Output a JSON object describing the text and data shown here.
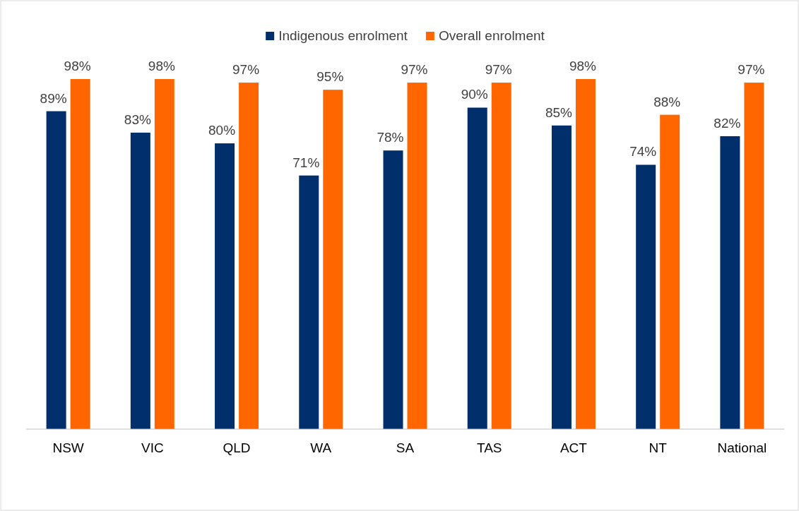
{
  "chart_data": {
    "type": "bar",
    "categories": [
      "NSW",
      "VIC",
      "QLD",
      "WA",
      "SA",
      "TAS",
      "ACT",
      "NT",
      "National"
    ],
    "series": [
      {
        "name": "Indigenous enrolment",
        "color": "#002f6c",
        "values": [
          89,
          83,
          80,
          71,
          78,
          90,
          85,
          74,
          82
        ],
        "value_labels": [
          "89%",
          "83%",
          "80%",
          "71%",
          "78%",
          "90%",
          "85%",
          "74%",
          "82%"
        ]
      },
      {
        "name": "Overall enrolment",
        "color": "#ff6600",
        "values": [
          98,
          98,
          97,
          95,
          97,
          97,
          98,
          88,
          97
        ],
        "value_labels": [
          "98%",
          "98%",
          "97%",
          "95%",
          "97%",
          "97%",
          "98%",
          "88%",
          "97%"
        ]
      }
    ],
    "legend": "top"
  }
}
